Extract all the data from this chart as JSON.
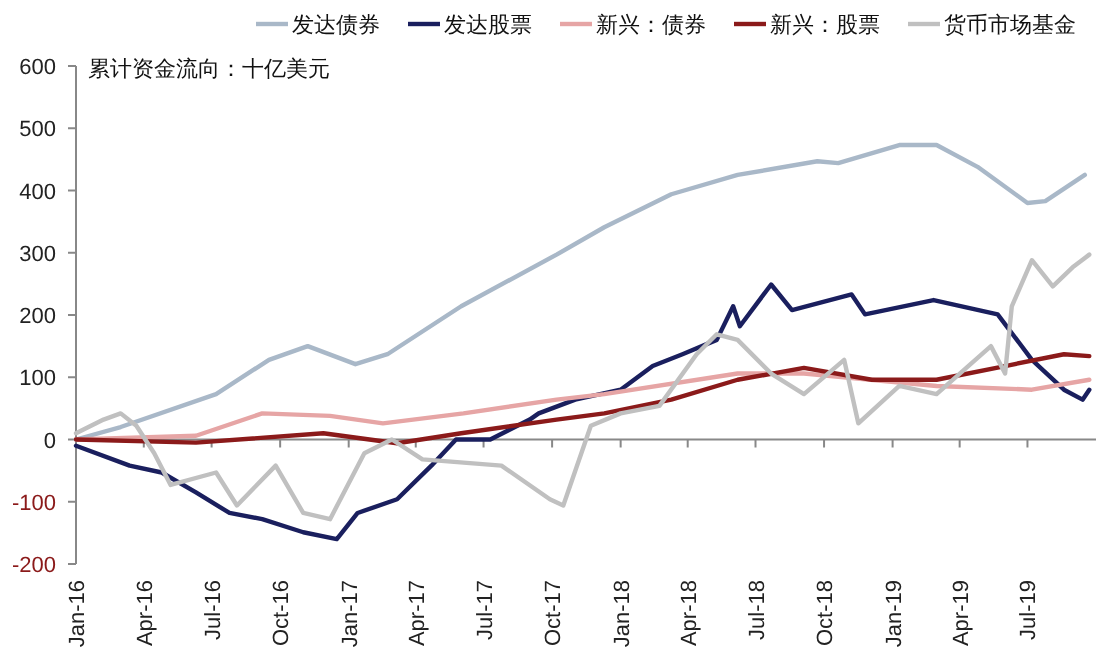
{
  "chart_data": {
    "type": "line",
    "annotations": [
      "累计资金流向：十亿美元"
    ],
    "xlim": [
      "2016-01-01",
      "2019-10-01"
    ],
    "ylim": [
      -200,
      600
    ],
    "yticks": [
      -200,
      -100,
      0,
      100,
      200,
      300,
      400,
      500,
      600
    ],
    "xticks": [
      {
        "value": "2016-01-01",
        "label": "Jan-16"
      },
      {
        "value": "2016-04-01",
        "label": "Apr-16"
      },
      {
        "value": "2016-07-01",
        "label": "Jul-16"
      },
      {
        "value": "2016-10-01",
        "label": "Oct-16"
      },
      {
        "value": "2017-01-01",
        "label": "Jan-17"
      },
      {
        "value": "2017-04-01",
        "label": "Apr-17"
      },
      {
        "value": "2017-07-01",
        "label": "Jul-17"
      },
      {
        "value": "2017-10-01",
        "label": "Oct-17"
      },
      {
        "value": "2018-01-01",
        "label": "Jan-18"
      },
      {
        "value": "2018-04-01",
        "label": "Apr-18"
      },
      {
        "value": "2018-07-01",
        "label": "Jul-18"
      },
      {
        "value": "2018-10-01",
        "label": "Oct-18"
      },
      {
        "value": "2019-01-01",
        "label": "Jan-19"
      },
      {
        "value": "2019-04-01",
        "label": "Apr-19"
      },
      {
        "value": "2019-07-01",
        "label": "Jul-19"
      }
    ],
    "legend": "top",
    "marker": "none",
    "line_style": "solid",
    "series": [
      {
        "name": "发达债券",
        "color": "#a9b8c8",
        "x": [
          "2016-01-01",
          "2016-03-01",
          "2016-07-07",
          "2016-09-16",
          "2016-11-07",
          "2017-01-10",
          "2017-02-22",
          "2017-06-01",
          "2017-10-07",
          "2017-12-10",
          "2018-03-10",
          "2018-06-07",
          "2018-09-22",
          "2018-10-20",
          "2019-01-10",
          "2019-03-01",
          "2019-04-25",
          "2019-07-01",
          "2019-07-25",
          "2019-09-16"
        ],
        "values": [
          0,
          20,
          73,
          128,
          150,
          121,
          137,
          214,
          297,
          341,
          394,
          425,
          447,
          444,
          473,
          473,
          438,
          380,
          383,
          425
        ]
      },
      {
        "name": "发达股票",
        "color": "#1a1f5e",
        "x": [
          "2016-01-01",
          "2016-03-13",
          "2016-04-25",
          "2016-06-10",
          "2016-07-25",
          "2016-09-07",
          "2016-11-01",
          "2016-12-16",
          "2017-01-13",
          "2017-03-07",
          "2017-04-22",
          "2017-05-25",
          "2017-07-10",
          "2017-09-01",
          "2017-09-13",
          "2017-11-01",
          "2018-01-01",
          "2018-02-13",
          "2018-03-25",
          "2018-05-10",
          "2018-06-01",
          "2018-06-10",
          "2018-07-22",
          "2018-08-19",
          "2018-11-07",
          "2018-11-25",
          "2019-02-25",
          "2019-05-22",
          "2019-07-07",
          "2019-08-19",
          "2019-09-13",
          "2019-09-22"
        ],
        "values": [
          -10,
          -42,
          -53,
          -85,
          -118,
          -128,
          -149,
          -160,
          -118,
          -96,
          -42,
          0,
          0,
          32,
          42,
          64,
          80,
          118,
          137,
          160,
          214,
          182,
          249,
          208,
          233,
          201,
          224,
          201,
          128,
          80,
          64,
          80
        ]
      },
      {
        "name": "新兴：债券",
        "color": "#e6a5a5",
        "x": [
          "2016-01-01",
          "2016-06-10",
          "2016-09-07",
          "2016-12-07",
          "2017-02-16",
          "2017-06-04",
          "2017-10-07",
          "2017-12-10",
          "2018-06-07",
          "2018-09-04",
          "2019-03-01",
          "2019-07-07",
          "2019-09-22"
        ],
        "values": [
          0,
          6,
          42,
          38,
          26,
          42,
          64,
          73,
          106,
          106,
          86,
          80,
          96
        ]
      },
      {
        "name": "新兴：股票",
        "color": "#8b1a1a",
        "x": [
          "2016-01-01",
          "2016-06-10",
          "2016-11-28",
          "2017-03-07",
          "2017-06-01",
          "2017-10-07",
          "2017-12-10",
          "2018-03-10",
          "2018-06-07",
          "2018-09-04",
          "2018-12-04",
          "2019-03-01",
          "2019-06-01",
          "2019-08-19",
          "2019-09-22"
        ],
        "values": [
          0,
          -5,
          10,
          -6,
          10,
          32,
          42,
          64,
          96,
          115,
          96,
          96,
          118,
          137,
          134
        ]
      },
      {
        "name": "货币市场基金",
        "color": "#c0c0c0",
        "x": [
          "2016-01-01",
          "2016-02-07",
          "2016-03-01",
          "2016-03-22",
          "2016-04-15",
          "2016-05-07",
          "2016-07-07",
          "2016-08-04",
          "2016-09-25",
          "2016-11-01",
          "2016-12-07",
          "2017-01-22",
          "2017-02-28",
          "2017-04-10",
          "2017-07-25",
          "2017-09-28",
          "2017-10-16",
          "2017-11-22",
          "2018-01-01",
          "2018-02-22",
          "2018-04-13",
          "2018-05-10",
          "2018-06-07",
          "2018-07-22",
          "2018-09-04",
          "2018-10-28",
          "2018-11-16",
          "2019-01-10",
          "2019-03-01",
          "2019-05-13",
          "2019-06-01",
          "2019-06-10",
          "2019-07-07",
          "2019-08-04",
          "2019-09-01",
          "2019-09-22"
        ],
        "values": [
          10,
          32,
          42,
          22,
          -22,
          -73,
          -53,
          -106,
          -42,
          -118,
          -128,
          -22,
          0,
          -32,
          -42,
          -96,
          -106,
          22,
          42,
          54,
          137,
          169,
          160,
          106,
          73,
          128,
          26,
          86,
          73,
          150,
          106,
          214,
          288,
          246,
          278,
          297
        ]
      }
    ]
  }
}
